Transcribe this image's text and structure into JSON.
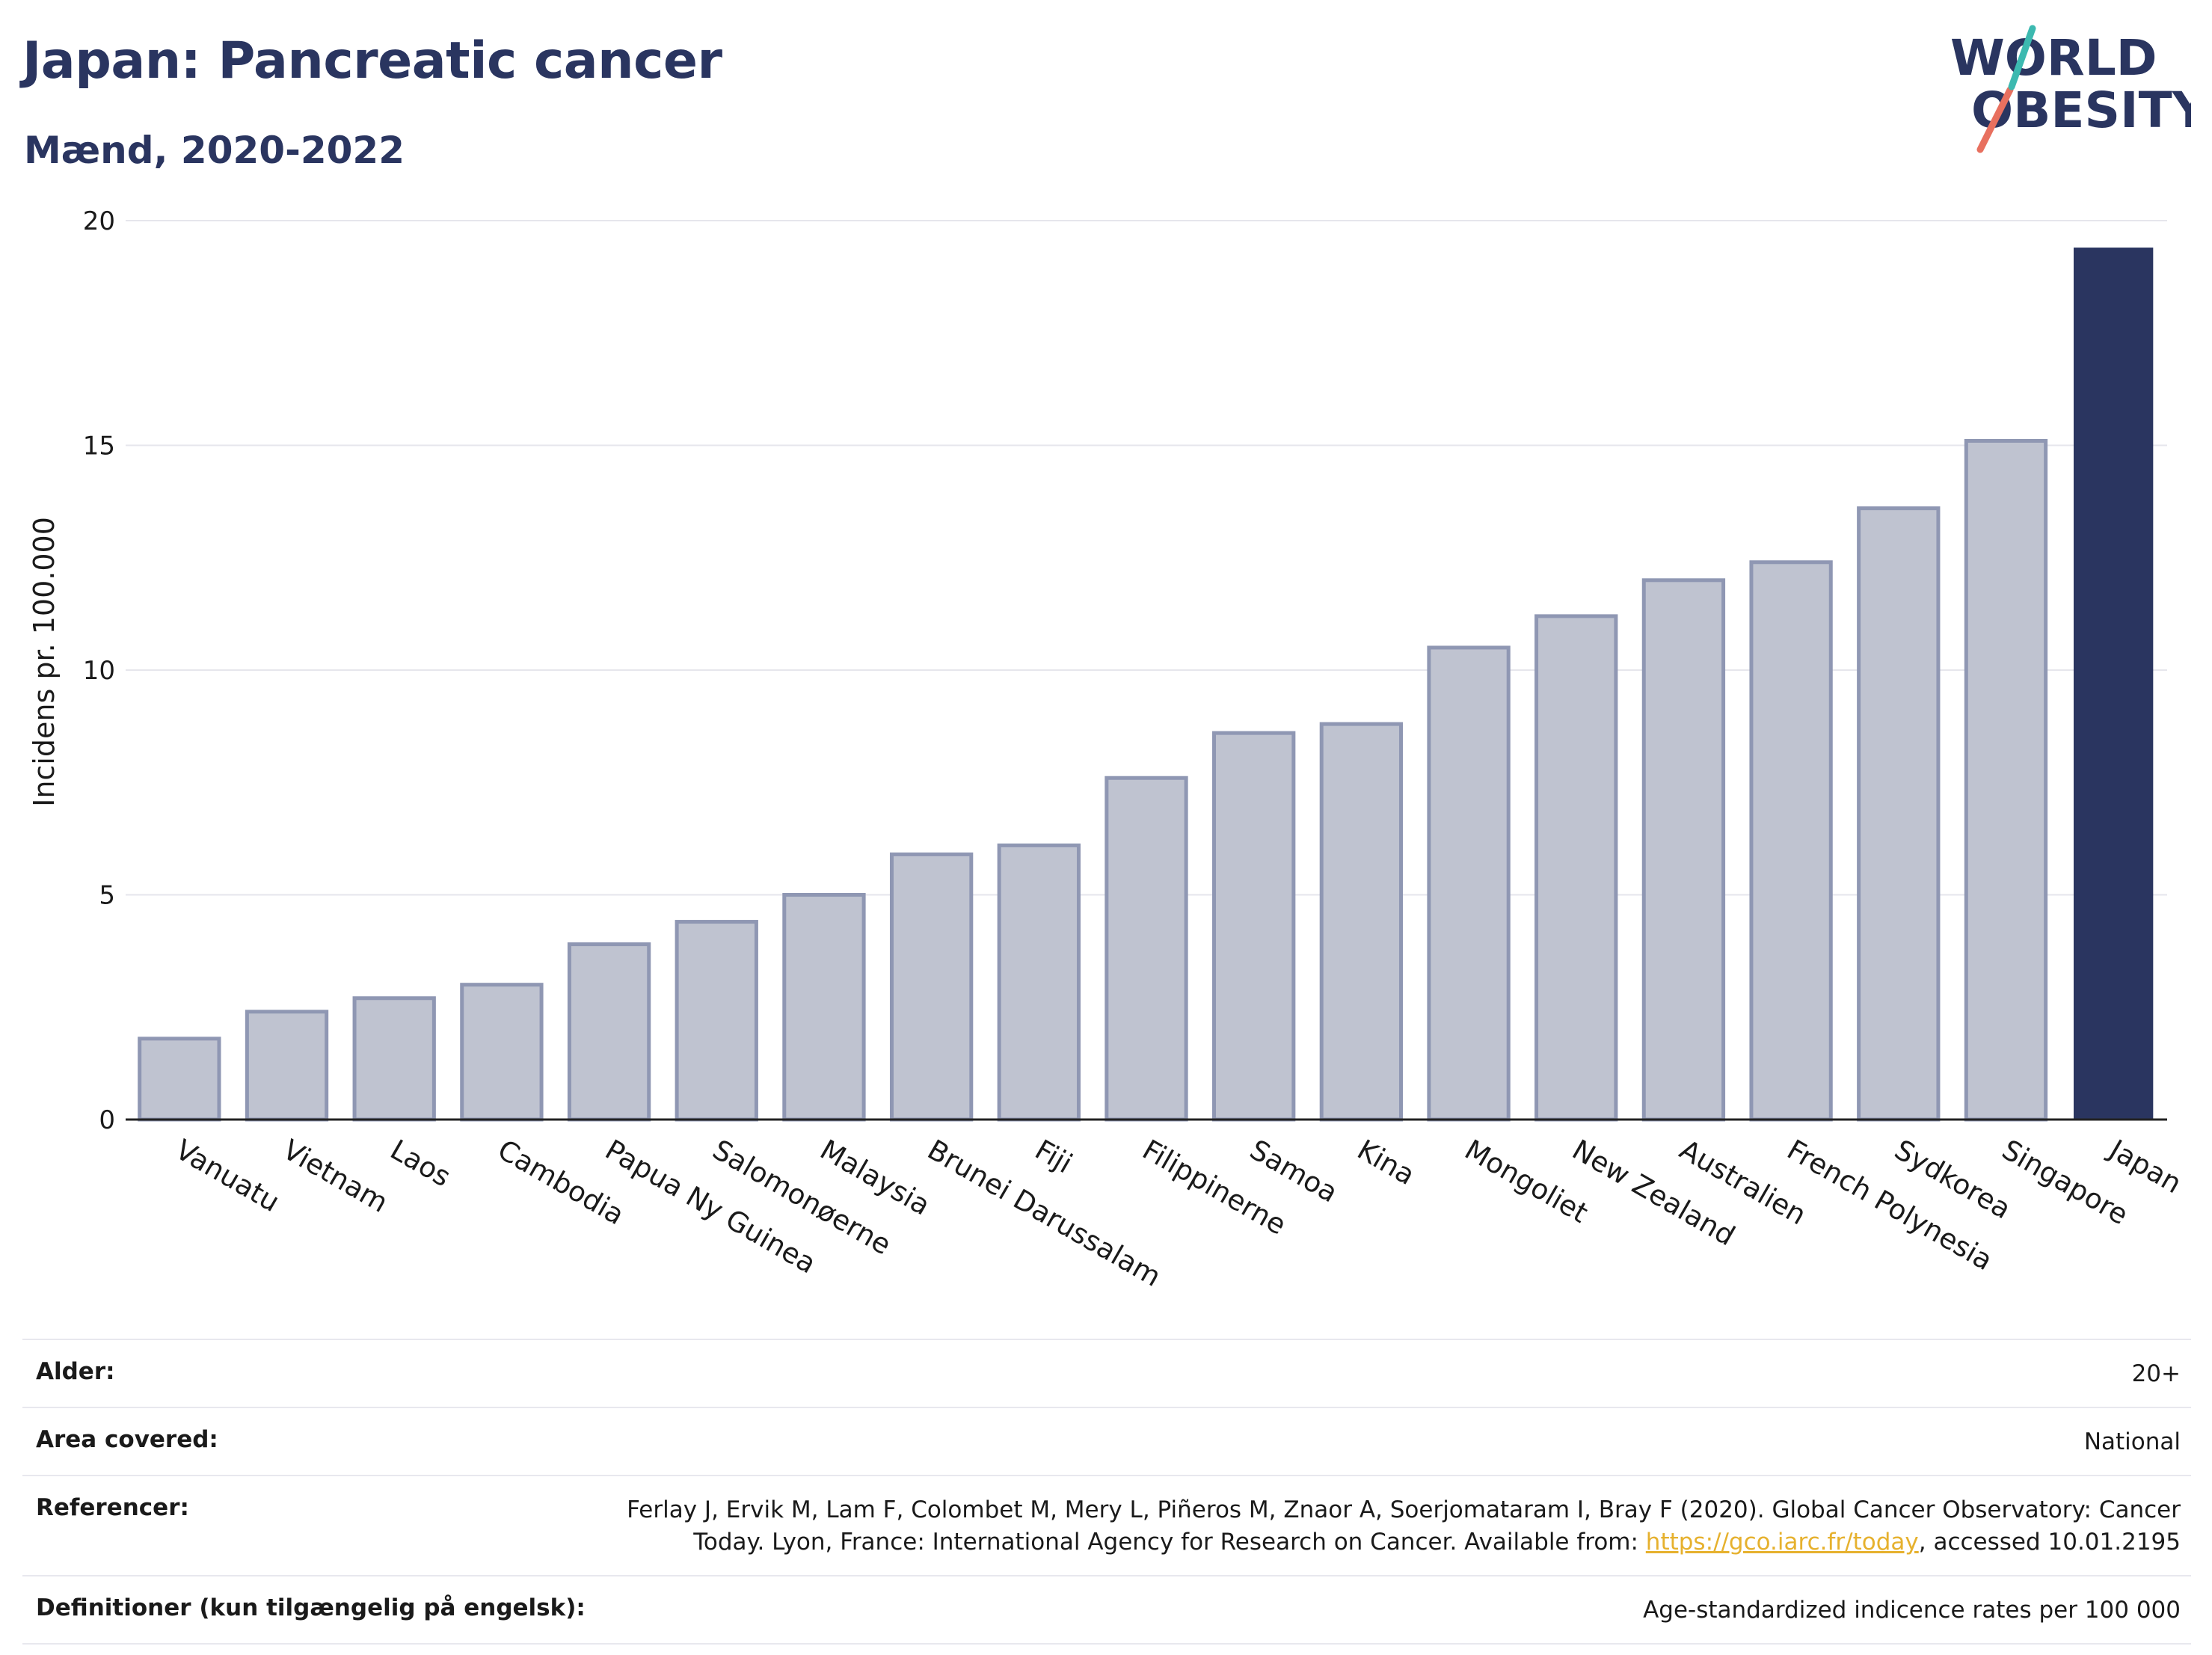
{
  "header": {
    "title": "Japan: Pancreatic cancer",
    "subtitle": "Mænd, 2020-2022"
  },
  "logo": {
    "line1": "WORLD",
    "line2": "OBESITY"
  },
  "colors": {
    "highlight": "#2a3560",
    "bar": "#bfc3d0",
    "bar_edge": "#8f97b3",
    "grid": "#e6e6ec"
  },
  "chart_data": {
    "type": "bar",
    "categories": [
      "Vanuatu",
      "Vietnam",
      "Laos",
      "Cambodia",
      "Papua Ny Guinea",
      "Salomonøerne",
      "Malaysia",
      "Brunei Darussalam",
      "Fiji",
      "Filippinerne",
      "Samoa",
      "Kina",
      "Mongoliet",
      "New Zealand",
      "Australien",
      "French Polynesia",
      "Sydkorea",
      "Singapore",
      "Japan"
    ],
    "values": [
      1.8,
      2.4,
      2.7,
      3.0,
      3.9,
      4.4,
      5.0,
      5.9,
      6.1,
      7.6,
      8.6,
      8.8,
      10.5,
      11.2,
      12.0,
      12.4,
      13.6,
      15.1,
      19.4
    ],
    "highlight": "Japan",
    "ylabel": "Incidens pr. 100.000",
    "xlabel": "",
    "ylim": [
      0,
      20
    ],
    "yticks": [
      0,
      5,
      10,
      15,
      20
    ],
    "grid": true
  },
  "info": [
    {
      "key": "Alder:",
      "value": "20+"
    },
    {
      "key": "Area covered:",
      "value": "National"
    },
    {
      "key": "Referencer:",
      "value_pre": "Ferlay J, Ervik M, Lam F, Colombet M, Mery L, Piñeros M, Znaor A, Soerjomataram I, Bray F (2020). Global Cancer Observatory: Cancer Today. Lyon, France: International Agency for Research on Cancer. Available from: ",
      "link": "https://gco.iarc.fr/today",
      "value_post": ", accessed 10.01.2195"
    },
    {
      "key": "Definitioner (kun tilgængelig på engelsk):",
      "value": "Age-standardized indicence rates per 100 000"
    }
  ]
}
